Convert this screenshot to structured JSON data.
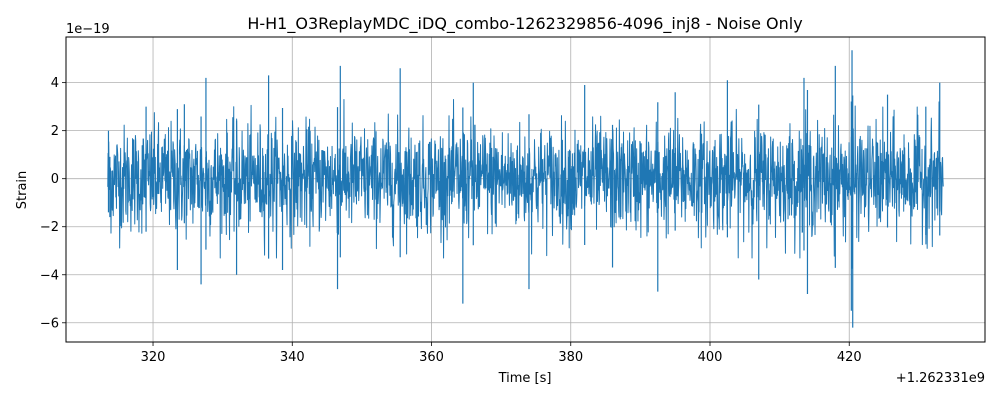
{
  "chart_data": {
    "type": "line",
    "title": "H-H1_O3ReplayMDC_iDQ_combo-1262329856-4096_inj8 - Noise Only",
    "xlabel": "Time [s]",
    "ylabel": "Strain",
    "x_offset_label": "+1.262331e9",
    "y_scale_label": "1e−19",
    "xlim": [
      307.5,
      439.5
    ],
    "ylim": [
      -6.8,
      5.9
    ],
    "x_ticks": [
      320,
      340,
      360,
      380,
      400,
      420
    ],
    "x_tick_labels": [
      "320",
      "340",
      "360",
      "380",
      "400",
      "420"
    ],
    "y_ticks": [
      -6,
      -4,
      -2,
      0,
      2,
      4
    ],
    "y_tick_labels": [
      "−6",
      "−4",
      "−2",
      "0",
      "2",
      "4"
    ],
    "grid": true,
    "series": [
      {
        "color": "#1f77b4",
        "x_range": [
          313.5,
          433.5
        ],
        "typical_amplitude": 2.0,
        "min_value": -6.2,
        "max_value": 5.35,
        "spikes": [
          {
            "x": 313.6,
            "y": 2.0
          },
          {
            "x": 313.8,
            "y": -1.6
          },
          {
            "x": 319.0,
            "y": 3.0
          },
          {
            "x": 323.5,
            "y": -3.8
          },
          {
            "x": 324.5,
            "y": 3.1
          },
          {
            "x": 326.9,
            "y": -4.4
          },
          {
            "x": 327.6,
            "y": 4.2
          },
          {
            "x": 332.0,
            "y": -4.0
          },
          {
            "x": 336.6,
            "y": 4.3
          },
          {
            "x": 338.6,
            "y": -3.8
          },
          {
            "x": 346.9,
            "y": 4.7
          },
          {
            "x": 346.5,
            "y": -4.6
          },
          {
            "x": 355.5,
            "y": 4.6
          },
          {
            "x": 364.5,
            "y": -5.2
          },
          {
            "x": 366.0,
            "y": 4.0
          },
          {
            "x": 374.0,
            "y": -4.6
          },
          {
            "x": 382.0,
            "y": 3.9
          },
          {
            "x": 386.0,
            "y": -3.7
          },
          {
            "x": 392.5,
            "y": -4.7
          },
          {
            "x": 395.0,
            "y": 3.6
          },
          {
            "x": 402.5,
            "y": 4.1
          },
          {
            "x": 407.0,
            "y": -4.2
          },
          {
            "x": 413.5,
            "y": 4.2
          },
          {
            "x": 414.0,
            "y": -4.8
          },
          {
            "x": 418.0,
            "y": 4.7
          },
          {
            "x": 420.4,
            "y": 5.35
          },
          {
            "x": 420.5,
            "y": -6.2
          },
          {
            "x": 420.3,
            "y": -5.5
          },
          {
            "x": 425.5,
            "y": 3.5
          },
          {
            "x": 431.0,
            "y": 3.0
          },
          {
            "x": 433.0,
            "y": 4.0
          }
        ]
      }
    ]
  }
}
